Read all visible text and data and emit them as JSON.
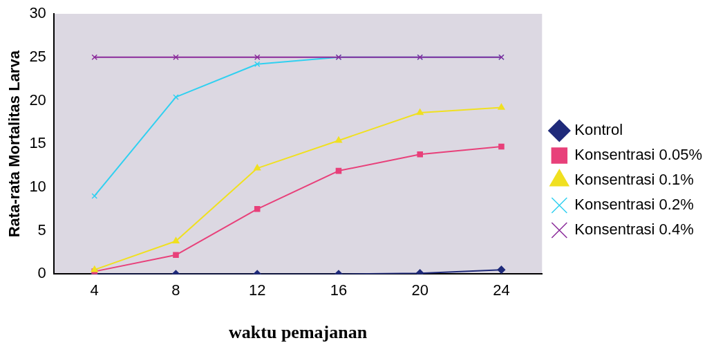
{
  "chart_data": {
    "type": "line",
    "xlabel": "waktu pemajanan",
    "ylabel": "Rata-rata Mortalitas Larva",
    "categories": [
      "4",
      "8",
      "12",
      "16",
      "20",
      "24"
    ],
    "ylim": [
      0,
      30
    ],
    "yticks": [
      0,
      5,
      10,
      15,
      20,
      25,
      30
    ],
    "grid": false,
    "legend": "right",
    "series": [
      {
        "name": "Kontrol",
        "color": "#1f2a7a",
        "marker": "diamond",
        "values": [
          0,
          0,
          0,
          0,
          0.1,
          0.5
        ]
      },
      {
        "name": "Konsentrasi 0.05%",
        "color": "#e8407a",
        "marker": "square",
        "values": [
          0.3,
          2.2,
          7.5,
          11.9,
          13.8,
          14.7
        ]
      },
      {
        "name": "Konsentrasi 0.1%",
        "color": "#f0e020",
        "marker": "triangle",
        "values": [
          0.5,
          3.8,
          12.2,
          15.4,
          18.6,
          19.2
        ]
      },
      {
        "name": "Konsentrasi 0.2%",
        "color": "#30d0f0",
        "marker": "cross",
        "values": [
          9,
          20.4,
          24.2,
          25,
          25,
          25
        ]
      },
      {
        "name": "Konsentrasi 0.4%",
        "color": "#8a2a9a",
        "marker": "cross",
        "values": [
          25,
          25,
          25,
          25,
          25,
          25
        ]
      }
    ]
  }
}
